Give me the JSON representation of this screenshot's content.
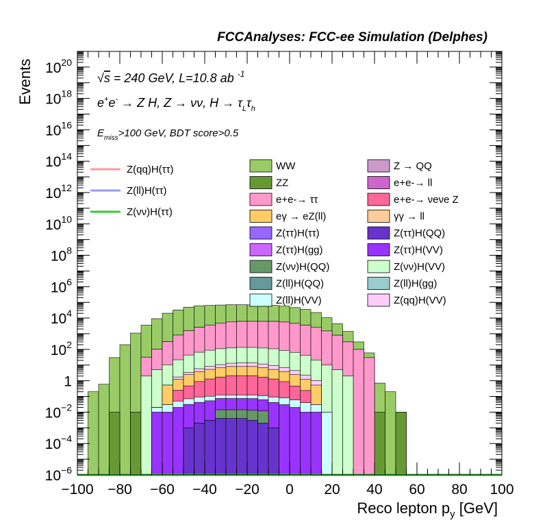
{
  "chart_data": {
    "type": "bar",
    "title": "FCCAnalyses: FCC-ee Simulation (Delphes)",
    "xlabel": "Reco lepton p_y [GeV]",
    "ylabel": "Events",
    "xlim": [
      -100,
      100
    ],
    "ylim": [
      1e-06,
      1e+21
    ],
    "y_scale": "log",
    "x_ticks": [
      "−100",
      "−80",
      "−60",
      "−40",
      "−20",
      "0",
      "20",
      "40",
      "60",
      "80",
      "100"
    ],
    "y_ticks": [
      "10^-6",
      "10^-4",
      "10^-2",
      "1",
      "10^2",
      "10^4",
      "10^6",
      "10^8",
      "10^10",
      "10^12",
      "10^14",
      "10^16",
      "10^18",
      "10^20"
    ],
    "annotations": [
      "√s = 240 GeV, L=10.8 ab^-1",
      "e+e- → Z H, Z → νν, H → τLτh",
      "Emiss>100 GeV, BDT score>0.5"
    ],
    "bin_width": 5,
    "bin_edges_start": -100,
    "stack_order": [
      "WW",
      "ZZ",
      "ee_tautau",
      "Z(vv)H(VV)",
      "Z(qq)H(VV)",
      "egamma_eZll",
      "ee_nunuZ",
      "Z(ll)H(VV)",
      "Z(tautau)H(VV)",
      "Z(vv)H(QQ)",
      "Z(tautau)H(QQ)",
      "Z(ll)H(QQ)"
    ],
    "stacked_series": [
      {
        "name": "WW",
        "color": "#99cc66",
        "values": [
          0,
          0.2,
          0.6,
          30,
          200,
          1100,
          3500,
          9000,
          20000,
          32000,
          48000,
          58000,
          60000,
          63000,
          65000,
          65000,
          63000,
          60000,
          58000,
          52000,
          42000,
          32000,
          20000,
          9000,
          3500,
          1100,
          200,
          30,
          0.7,
          0.2,
          0,
          0,
          0,
          0,
          0,
          0,
          0,
          0,
          0,
          0
        ]
      },
      {
        "name": "ZZ",
        "color": "#669933",
        "values": [
          0,
          0,
          0,
          0.01,
          0,
          0.01,
          0,
          0.01,
          0,
          0.01,
          0,
          0,
          0,
          0,
          0,
          0,
          0,
          0,
          0,
          0,
          0,
          0,
          0,
          0,
          0,
          0,
          0.01,
          0,
          0.01,
          0,
          0.01,
          0,
          0,
          0,
          0,
          0,
          0,
          0,
          0,
          0
        ]
      },
      {
        "name": "e+e-→ττ",
        "color": "#ff99cc",
        "values": [
          0,
          0,
          0,
          0,
          0,
          0,
          30,
          100,
          300,
          800,
          1500,
          2500,
          3500,
          4500,
          5500,
          6000,
          6000,
          6000,
          6000,
          5500,
          4500,
          3500,
          2500,
          1500,
          800,
          300,
          100,
          30,
          0,
          0,
          0,
          0,
          0,
          0,
          0,
          0,
          0,
          0,
          0,
          0
        ]
      },
      {
        "name": "Z(νν)H(VV)",
        "color": "#ccffcc",
        "values": [
          0,
          0,
          0,
          0,
          0,
          0,
          2,
          5,
          10,
          20,
          40,
          60,
          80,
          100,
          110,
          120,
          120,
          110,
          100,
          80,
          60,
          40,
          20,
          10,
          5,
          2,
          0,
          0,
          0,
          0,
          0,
          0,
          0,
          0,
          0,
          0,
          0,
          0,
          0,
          0
        ]
      },
      {
        "name": "Z(qq)H(VV)",
        "color": "#ffccff",
        "values": [
          0,
          0,
          0,
          0,
          0,
          0,
          0,
          0,
          0,
          0.5,
          1,
          2,
          3,
          4,
          5,
          6,
          6,
          5,
          4,
          3,
          2,
          1,
          0.5,
          0,
          0,
          0,
          0,
          0,
          0,
          0,
          0,
          0,
          0,
          0,
          0,
          0,
          0,
          0,
          0,
          0
        ]
      },
      {
        "name": "eγ→eZ(ll)",
        "color": "#ffcc66",
        "values": [
          0,
          0,
          0,
          0,
          0,
          0,
          0,
          0,
          0.5,
          1,
          2,
          3,
          4,
          5,
          6,
          6,
          6,
          5,
          4,
          3,
          2,
          1,
          0.5,
          0,
          0,
          0,
          0,
          0,
          0,
          0,
          0,
          0,
          0,
          0,
          0,
          0,
          0,
          0,
          0,
          0
        ]
      },
      {
        "name": "e+e-→νeνe Z",
        "color": "#ff6699",
        "values": [
          0,
          0,
          0,
          0,
          0,
          0,
          0,
          0,
          0,
          0.2,
          0.4,
          0.8,
          1.2,
          1.6,
          2,
          2,
          2,
          1.6,
          1.2,
          0.8,
          0.4,
          0.2,
          0,
          0,
          0,
          0,
          0,
          0,
          0,
          0,
          0,
          0,
          0,
          0,
          0,
          0,
          0,
          0,
          0,
          0
        ]
      },
      {
        "name": "Z(ll)H(VV)",
        "color": "#ccffff",
        "values": [
          0,
          0,
          0,
          0,
          0,
          0,
          0,
          0.01,
          0.02,
          0.03,
          0.04,
          0.05,
          0.05,
          0.05,
          0.05,
          0.05,
          0.05,
          0.05,
          0.05,
          0.05,
          0.04,
          0.03,
          0.02,
          0.01,
          0,
          0,
          0,
          0,
          0,
          0,
          0,
          0,
          0,
          0,
          0,
          0,
          0,
          0,
          0,
          0
        ]
      },
      {
        "name": "Z(ττ)H(VV)",
        "color": "#9933ff",
        "values": [
          0,
          0,
          0,
          0,
          0,
          0,
          0,
          0.01,
          0.01,
          0.02,
          0.03,
          0.04,
          0.05,
          0.06,
          0.06,
          0.06,
          0.06,
          0.05,
          0.04,
          0.03,
          0.02,
          0.01,
          0.01,
          0,
          0,
          0,
          0,
          0,
          0,
          0,
          0,
          0,
          0,
          0,
          0,
          0,
          0,
          0,
          0,
          0
        ]
      },
      {
        "name": "Z(νν)H(QQ)",
        "color": "#669966",
        "values": [
          0,
          0,
          0,
          0,
          0,
          0,
          0,
          0,
          0,
          0,
          0,
          0,
          0,
          0.01,
          0.01,
          0.01,
          0.01,
          0.01,
          0,
          0,
          0,
          0,
          0,
          0,
          0,
          0,
          0,
          0,
          0,
          0,
          0,
          0,
          0,
          0,
          0,
          0,
          0,
          0,
          0,
          0
        ]
      },
      {
        "name": "Z(ττ)H(QQ)",
        "color": "#6633cc",
        "values": [
          0,
          0,
          0,
          0,
          0,
          0,
          0,
          0,
          0,
          0,
          0.001,
          0.002,
          0.003,
          0.004,
          0.004,
          0.004,
          0.003,
          0.002,
          0.001,
          0,
          0,
          0,
          0,
          0,
          0,
          0,
          0,
          0,
          0,
          0,
          0,
          0,
          0,
          0,
          0,
          0,
          0,
          0,
          0,
          0
        ]
      },
      {
        "name": "Z(ll)H(QQ)",
        "color": "#669999",
        "values": [
          0,
          0,
          0,
          0,
          0,
          0,
          0,
          0,
          0,
          0,
          0,
          0,
          0,
          0,
          0,
          0,
          0,
          0,
          0,
          0,
          0,
          0,
          0,
          0,
          0,
          0,
          0,
          0,
          0,
          0,
          0,
          0,
          0,
          0,
          0,
          0,
          0,
          0,
          0,
          0
        ]
      }
    ],
    "overlay_series": [
      {
        "name": "Z(qq)H(ττ)",
        "color": "#ff9999",
        "values": [
          0,
          0,
          0,
          0,
          0,
          0,
          0,
          0,
          0,
          0,
          0,
          0,
          0,
          0,
          0,
          0,
          0,
          0,
          0,
          0,
          0,
          0,
          0,
          0,
          0,
          0,
          0,
          0,
          0,
          0,
          0,
          0,
          0,
          0,
          0,
          0,
          0,
          0,
          0,
          0
        ]
      },
      {
        "name": "Z(ll)H(ττ)",
        "color": "#9999ff",
        "values": [
          0,
          0,
          0,
          0,
          0,
          0,
          0,
          0,
          0,
          0,
          0,
          0,
          0,
          0,
          0,
          0,
          0,
          0,
          0,
          0,
          0,
          0,
          0,
          0,
          0,
          0,
          0,
          0,
          0,
          0,
          0,
          0,
          0,
          0,
          0,
          0,
          0,
          0,
          0,
          0
        ]
      },
      {
        "name": "Z(νν)H(ττ)",
        "color": "#33cc33",
        "values": [
          0,
          0,
          0,
          0,
          0,
          0,
          0,
          0,
          0,
          0,
          0,
          0,
          0,
          0,
          0,
          0,
          0,
          0,
          0,
          0,
          0,
          0,
          0,
          0,
          0,
          0,
          0,
          0,
          0,
          0,
          0,
          0,
          0,
          0,
          0,
          0,
          0,
          0,
          0,
          0
        ]
      }
    ],
    "legend_left": [
      {
        "label": "Z(qq)H(ττ)",
        "color": "#ff9999",
        "style": "line"
      },
      {
        "label": "Z(ll)H(ττ)",
        "color": "#9999ff",
        "style": "line"
      },
      {
        "label": "Z(νν)H(ττ)",
        "color": "#33cc33",
        "style": "line"
      }
    ],
    "legend_mid": [
      {
        "label": "WW",
        "color": "#99cc66"
      },
      {
        "label": "ZZ",
        "color": "#669933"
      },
      {
        "label": "e+e-→ ττ",
        "color": "#ff99cc"
      },
      {
        "label": "eγ → eZ(ll)",
        "color": "#ffcc66"
      },
      {
        "label": "Z(ττ)H(ττ)",
        "color": "#9966ff"
      },
      {
        "label": "Z(ττ)H(gg)",
        "color": "#cc66ff"
      },
      {
        "label": "Z(νν)H(QQ)",
        "color": "#669966"
      },
      {
        "label": "Z(ll)H(QQ)",
        "color": "#669999"
      },
      {
        "label": "Z(ll)H(VV)",
        "color": "#ccffff"
      }
    ],
    "legend_right": [
      {
        "label": "Z → QQ",
        "color": "#cc99cc"
      },
      {
        "label": "e+e-→ ll",
        "color": "#cc66cc"
      },
      {
        "label": "e+e-→ νeνe Z",
        "color": "#ff6699"
      },
      {
        "label": "γγ → ll",
        "color": "#ffcc99"
      },
      {
        "label": "Z(ττ)H(QQ)",
        "color": "#6633cc"
      },
      {
        "label": "Z(ττ)H(VV)",
        "color": "#9933ff"
      },
      {
        "label": "Z(νν)H(VV)",
        "color": "#ccffcc"
      },
      {
        "label": "Z(ll)H(gg)",
        "color": "#99cccc"
      },
      {
        "label": "Z(qq)H(VV)",
        "color": "#ffccff"
      }
    ]
  }
}
